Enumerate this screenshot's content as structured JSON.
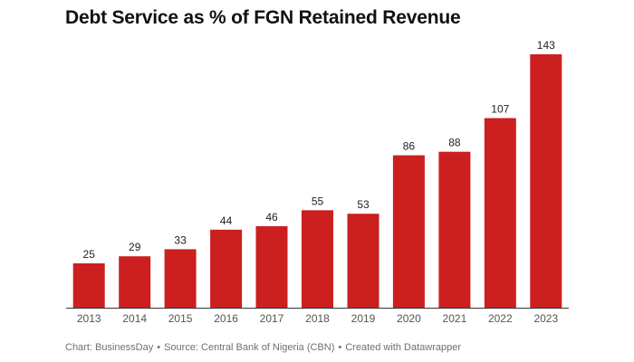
{
  "chart_data": {
    "type": "bar",
    "title": "Debt Service as % of FGN Retained Revenue",
    "categories": [
      "2013",
      "2014",
      "2015",
      "2016",
      "2017",
      "2018",
      "2019",
      "2020",
      "2021",
      "2022",
      "2023"
    ],
    "values": [
      25,
      29,
      33,
      44,
      46,
      55,
      53,
      86,
      88,
      107,
      143
    ],
    "xlabel": "",
    "ylabel": "",
    "ylim": [
      0,
      150
    ],
    "grid": false,
    "bar_color": "#cc1f1f",
    "axis_color": "#333333"
  },
  "footer": {
    "credit": "Chart: BusinessDay",
    "source": "Source: Central Bank of Nigeria (CBN)",
    "tool": "Created with Datawrapper",
    "separator": "•"
  }
}
